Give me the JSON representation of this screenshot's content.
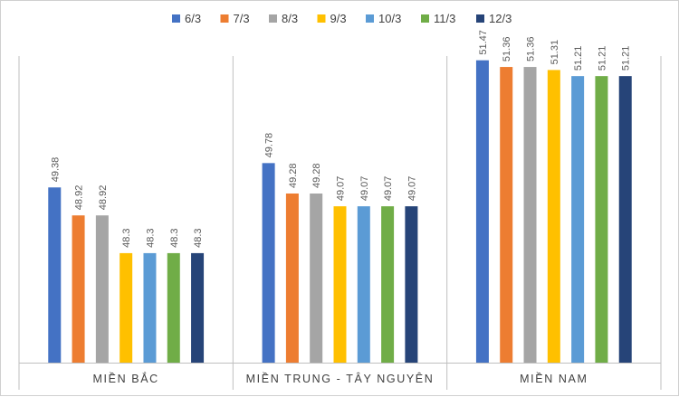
{
  "chart_data": {
    "type": "bar",
    "categories": [
      "MIỀN BẮC",
      "MIỀN TRUNG - TÂY NGUYÊN",
      "MIỀN NAM"
    ],
    "series": [
      {
        "name": "6/3",
        "color": "#4472C4",
        "values": [
          49.38,
          49.78,
          51.47
        ]
      },
      {
        "name": "7/3",
        "color": "#ED7D31",
        "values": [
          48.92,
          49.28,
          51.36
        ]
      },
      {
        "name": "8/3",
        "color": "#A5A5A5",
        "values": [
          48.92,
          49.28,
          51.36
        ]
      },
      {
        "name": "9/3",
        "color": "#FFC000",
        "values": [
          48.3,
          49.07,
          51.31
        ]
      },
      {
        "name": "10/3",
        "color": "#5B9BD5",
        "values": [
          48.3,
          49.07,
          51.21
        ]
      },
      {
        "name": "11/3",
        "color": "#70AD47",
        "values": [
          48.3,
          49.07,
          51.21
        ]
      },
      {
        "name": "12/3",
        "color": "#264478",
        "values": [
          48.3,
          49.07,
          51.21
        ]
      }
    ],
    "ylim": [
      46.5,
      52.0
    ],
    "title": "",
    "xlabel": "",
    "ylabel": "",
    "grid": false,
    "legend": "top-center",
    "data_labels": "vertical-above-bars"
  },
  "colors": {
    "axis": "#bfbfbf",
    "label": "#404040",
    "data_label": "#595959"
  }
}
